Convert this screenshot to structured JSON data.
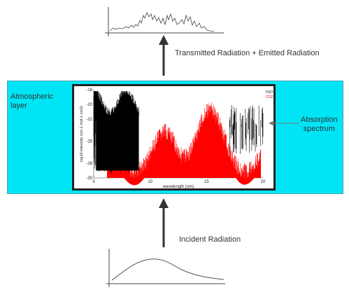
{
  "labels": {
    "top_arrow": "Transmitted Radiation + Emitted Radiation",
    "bottom_arrow": "Incident Radiation",
    "layer_line1": "Atmospheric",
    "layer_line2": "layer",
    "absorption_line1": "Absorption",
    "absorption_line2": "spectrum"
  },
  "chart_data": {
    "type": "line",
    "xlabel": "wavelength (um)",
    "ylabel": "log10 intensity (cm-1 mol-1 cm2)",
    "x_ticks": [
      "5",
      "10",
      "15",
      "20"
    ],
    "y_ticks": [
      "-18",
      "-20",
      "-22",
      "-25",
      "-28",
      "-30"
    ],
    "xlim": [
      5,
      20
    ],
    "ylim": [
      -30,
      -18
    ],
    "legend": [
      "H2O",
      "CO2"
    ],
    "legend_placement": "top-right",
    "series": [
      {
        "name": "H2O",
        "color": "#000000"
      },
      {
        "name": "CO2",
        "color": "#ff0000"
      }
    ]
  },
  "colors": {
    "layer": "#00e5f6",
    "absorption": "#ff0000",
    "water_band": "#000000",
    "arrow": "#333333"
  }
}
